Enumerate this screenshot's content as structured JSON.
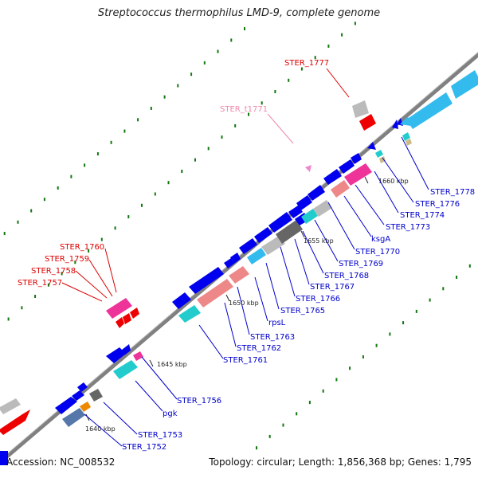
{
  "title": "Streptococcus thermophilus LMD-9, complete genome",
  "footer": {
    "accession": "Accession: NC_008532",
    "summary": "Topology: circular; Length: 1,856,368 bp; Genes: 1,795"
  },
  "ticks": [
    "1640 kbp",
    "1645 kbp",
    "1650 kbp",
    "1655 kbp",
    "1660 kbp"
  ],
  "labels_red": [
    "STER_1777",
    "STER_1760",
    "STER_1759",
    "STER_1758",
    "STER_1757"
  ],
  "labels_pink": [
    "STER_t1771"
  ],
  "labels_blue": [
    "STER_1778",
    "STER_1776",
    "STER_1774",
    "STER_1773",
    "ksgA",
    "STER_1770",
    "STER_1769",
    "STER_1768",
    "STER_1767",
    "STER_1766",
    "STER_1765",
    "rpsL",
    "STER_1763",
    "STER_1762",
    "STER_1761",
    "STER_1756",
    "pgk",
    "STER_1753",
    "STER_1752"
  ],
  "colors": {
    "backbone": "#808080",
    "gene_blue": "#0000ee",
    "gene_red": "#ee0000",
    "gene_pink": "#ee3399",
    "gene_cyan": "#22cccc",
    "gene_skyblue": "#33bbee",
    "gene_salmon": "#ee8888",
    "gene_gray": "#bbbbbb",
    "gene_darkgray": "#666666",
    "gene_orange": "#ee8800",
    "gene_steel": "#5577aa",
    "label_red": "#dd0000",
    "label_pink": "#ee88aa",
    "label_blue": "#0000cc",
    "gc_dots": "#117711"
  }
}
